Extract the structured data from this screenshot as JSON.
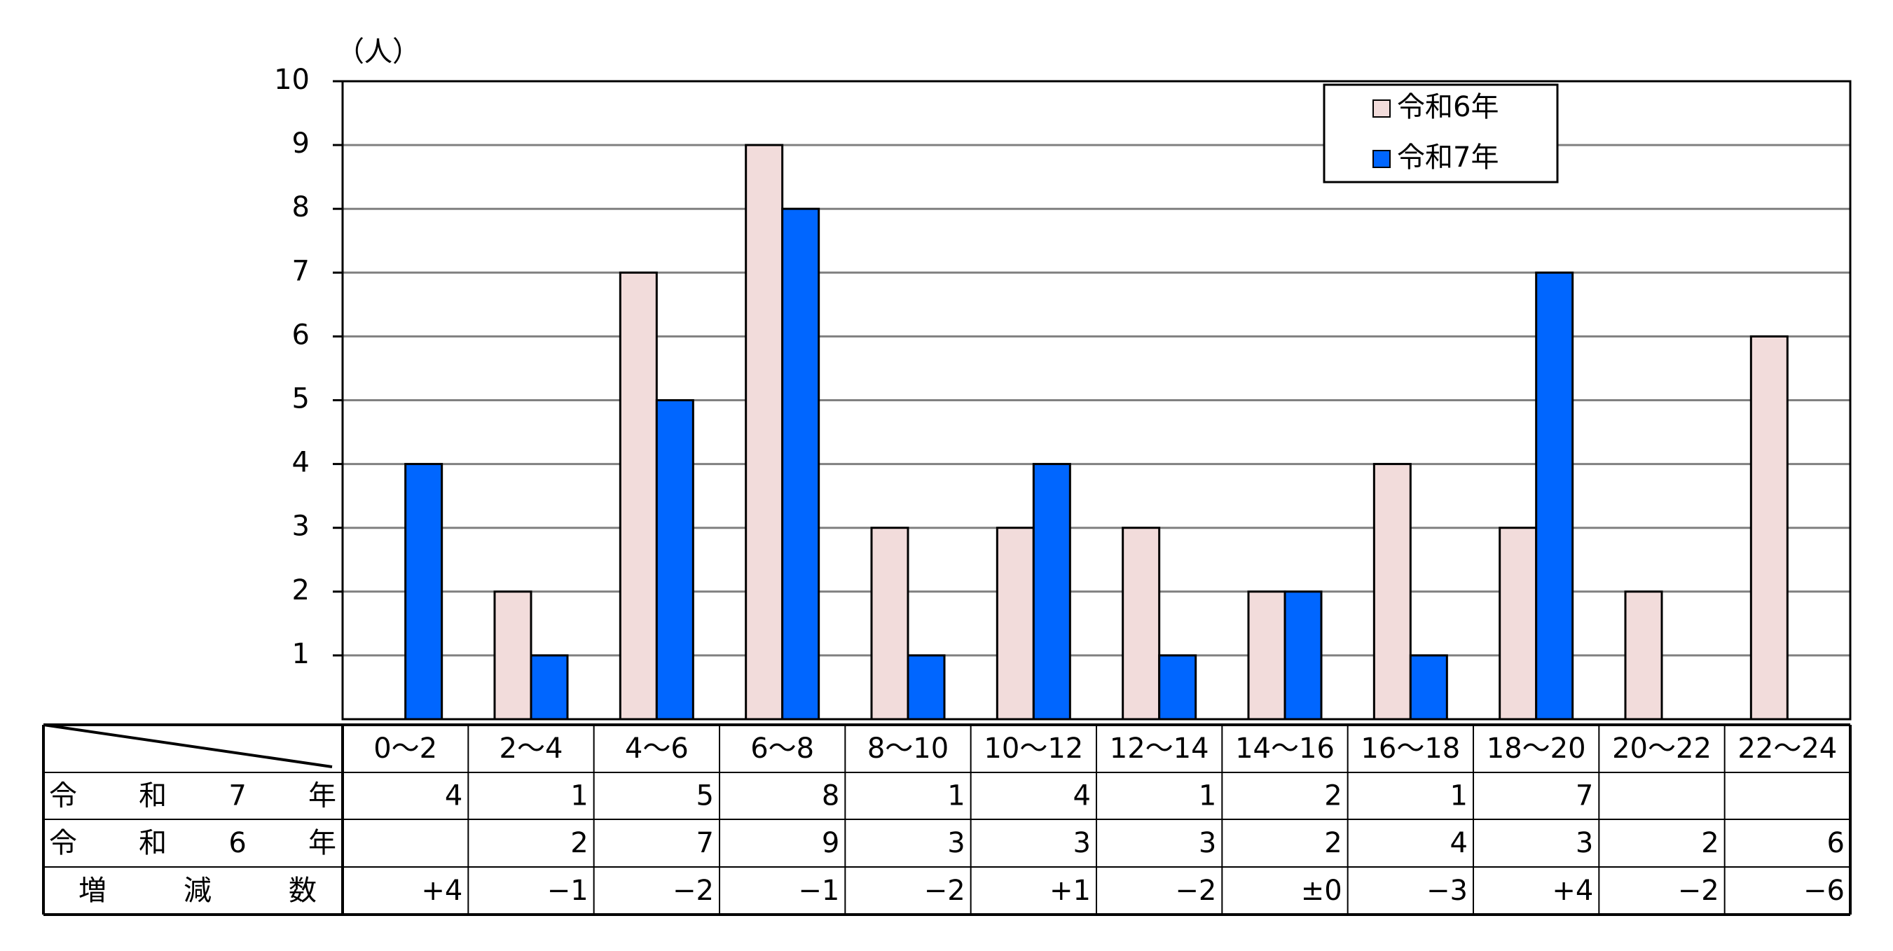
{
  "chart_data": {
    "type": "bar",
    "y_label": "（人）",
    "categories": [
      "0～2",
      "2～4",
      "4～6",
      "6～8",
      "8～10",
      "10～12",
      "12～14",
      "14～16",
      "16～18",
      "18～20",
      "20～22",
      "22～24"
    ],
    "series": [
      {
        "name": "令和6年",
        "color": "#f2dcdb",
        "values": [
          null,
          2,
          7,
          9,
          3,
          3,
          3,
          2,
          4,
          3,
          2,
          6
        ]
      },
      {
        "name": "令和7年",
        "color": "#0066ff",
        "values": [
          4,
          1,
          5,
          8,
          1,
          4,
          1,
          2,
          1,
          7,
          null,
          null
        ]
      }
    ],
    "ylim": [
      0,
      10
    ],
    "yticks": [
      1,
      2,
      3,
      4,
      5,
      6,
      7,
      8,
      9,
      10
    ],
    "grid": true,
    "legend": "upper right",
    "difference": {
      "label": "増減数",
      "values": [
        4,
        -1,
        -2,
        -1,
        -2,
        1,
        -2,
        0,
        -3,
        4,
        -2,
        -6
      ],
      "value_labels": [
        "+4",
        "−1",
        "−2",
        "−1",
        "−2",
        "+1",
        "−2",
        "±0",
        "−3",
        "+4",
        "−2",
        "−6"
      ]
    }
  }
}
